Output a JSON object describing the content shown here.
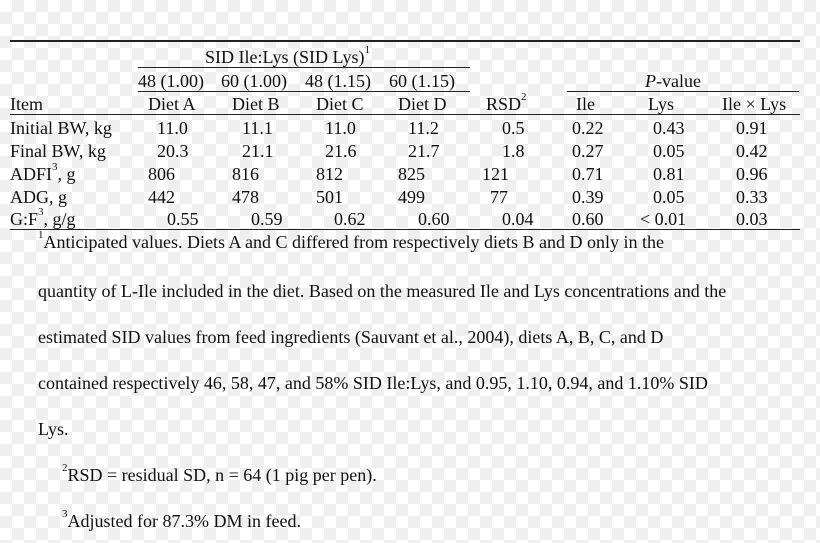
{
  "table": {
    "group_header": "SID Ile:Lys (SID Lys)",
    "group_header_sup": "1",
    "ratios": [
      "48 (1.00)",
      "60 (1.00)",
      "48 (1.15)",
      "60 (1.15)"
    ],
    "pvalue_header_italic": "P",
    "pvalue_header_rest": "-value",
    "item_header": "Item",
    "diets": [
      "Diet A",
      "Diet B",
      "Diet C",
      "Diet D"
    ],
    "rsd_header": "RSD",
    "rsd_header_sup": "2",
    "pvalue_cols": [
      "Ile",
      "Lys",
      "Ile × Lys"
    ],
    "rows": [
      {
        "label": "Initial BW, kg",
        "sup": "",
        "values": [
          "11.0",
          "11.1",
          "11.0",
          "11.2"
        ],
        "rsd": "0.5",
        "p": [
          "0.22",
          "0.43",
          "0.91"
        ]
      },
      {
        "label": "Final BW, kg",
        "sup": "",
        "values": [
          "20.3",
          "21.1",
          "21.6",
          "21.7"
        ],
        "rsd": "1.8",
        "p": [
          "0.27",
          "0.05",
          "0.42"
        ]
      },
      {
        "label": "ADFI",
        "sup": "3",
        "label_suffix": ", g",
        "values": [
          "806",
          "816",
          "812",
          "825"
        ],
        "rsd": "121",
        "p": [
          "0.71",
          "0.81",
          "0.96"
        ]
      },
      {
        "label": "ADG, g",
        "sup": "",
        "values": [
          "442",
          "478",
          "501",
          "499"
        ],
        "rsd": "77",
        "p": [
          "0.39",
          "0.05",
          "0.33"
        ]
      },
      {
        "label": "G:F",
        "sup": "3",
        "label_suffix": ", g/g",
        "values": [
          "0.55",
          "0.59",
          "0.62",
          "0.60"
        ],
        "rsd": "0.04",
        "p": [
          "0.60",
          "< 0.01",
          "0.03"
        ]
      }
    ]
  },
  "footnotes": {
    "fn1_sup": "1",
    "fn1_lines": [
      "Anticipated values. Diets A and C differed from respectively diets B and D only in the",
      "quantity of L-Ile included in the diet. Based on the measured Ile and Lys concentrations and the",
      "estimated SID values from feed ingredients (Sauvant et al., 2004), diets A, B, C, and D",
      "contained respectively 46, 58, 47, and 58% SID Ile:Lys, and 0.95, 1.10, 0.94, and 1.10% SID",
      "Lys."
    ],
    "fn2_sup": "2",
    "fn2_text": "RSD = residual SD, n = 64 (1 pig per pen).",
    "fn3_sup": "3",
    "fn3_text": "Adjusted for 87.3% DM in feed."
  }
}
